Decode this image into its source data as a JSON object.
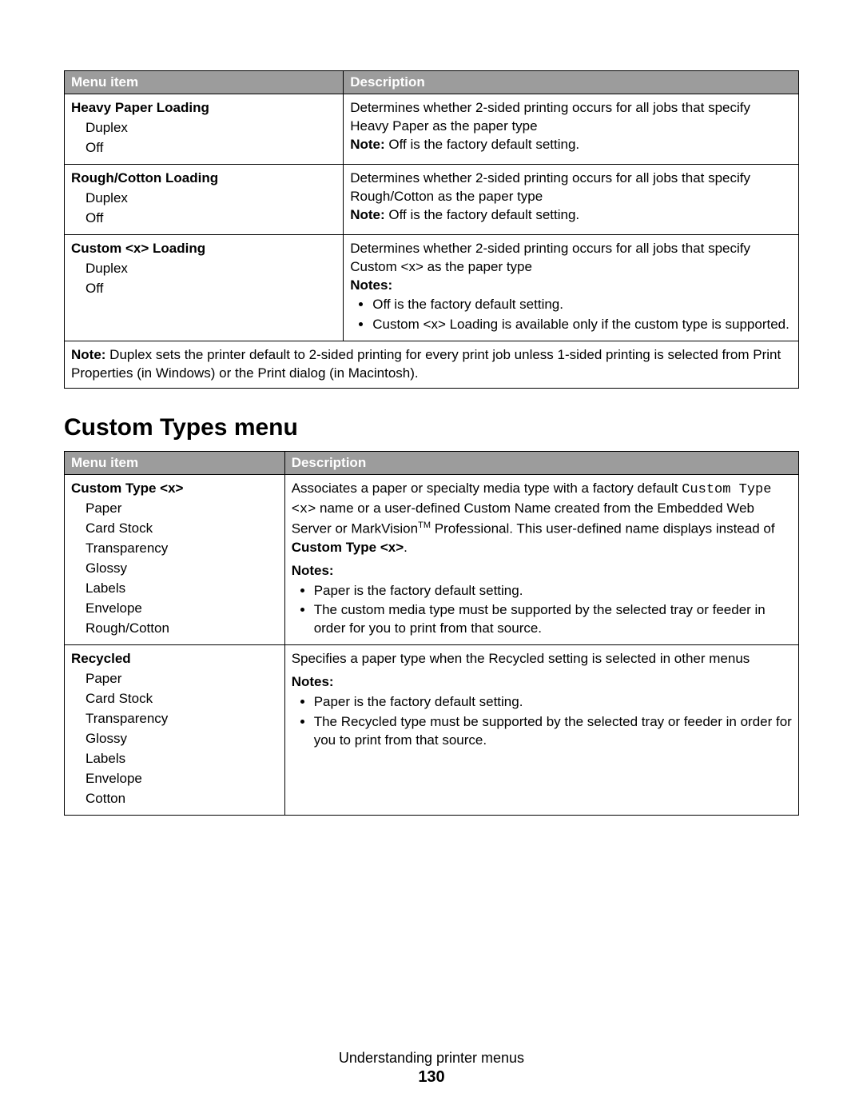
{
  "colors": {
    "header_bg": "#9c9c9c",
    "header_text": "#ffffff",
    "border": "#000000",
    "page_bg": "#ffffff"
  },
  "table1": {
    "col1_width_percent": 38,
    "headers": {
      "col1": "Menu item",
      "col2": "Description"
    },
    "rows": [
      {
        "title": "Heavy Paper Loading",
        "options": [
          "Duplex",
          "Off"
        ],
        "desc_main": "Determines whether 2-sided printing occurs for all jobs that specify Heavy Paper as the paper type",
        "note_label": "Note:",
        "note_text": " Off is the factory default setting."
      },
      {
        "title": "Rough/Cotton Loading",
        "options": [
          "Duplex",
          "Off"
        ],
        "desc_main": "Determines whether 2-sided printing occurs for all jobs that specify Rough/Cotton as the paper type",
        "note_label": "Note:",
        "note_text": " Off is the factory default setting."
      },
      {
        "title": "Custom <x> Loading",
        "options": [
          "Duplex",
          "Off"
        ],
        "desc_main": "Determines whether 2-sided printing occurs for all jobs that specify Custom <x> as the paper type",
        "notes_label": "Notes:",
        "bullets": [
          "Off is the factory default setting.",
          "Custom <x> Loading is available only if the custom type is supported."
        ]
      }
    ],
    "footnote_label": "Note:",
    "footnote_text": " Duplex sets the printer default to 2-sided printing for every print job unless 1-sided printing is selected from Print Properties (in Windows) or the Print dialog (in Macintosh)."
  },
  "section_heading": "Custom Types menu",
  "table2": {
    "col1_width_percent": 30,
    "headers": {
      "col1": "Menu item",
      "col2": "Description"
    },
    "rows": [
      {
        "title": "Custom Type <x>",
        "options": [
          "Paper",
          "Card Stock",
          "Transparency",
          "Glossy",
          "Labels",
          "Envelope",
          "Rough/Cotton"
        ],
        "desc_parts": {
          "pre": "Associates a paper or specialty media type with a factory default ",
          "mono1": "Custom Type <x>",
          "mid1": " name or a user-defined Custom Name created from the Embedded Web Server or MarkVision",
          "tm": "TM",
          "mid2": " Professional. This user-defined name displays instead of ",
          "bold1": "Custom Type <x>",
          "post": "."
        },
        "notes_label": "Notes:",
        "bullets": [
          "Paper is the factory default setting.",
          "The custom media type must be supported by the selected tray or feeder in order for you to print from that source."
        ]
      },
      {
        "title": "Recycled",
        "options": [
          "Paper",
          "Card Stock",
          "Transparency",
          "Glossy",
          "Labels",
          "Envelope",
          "Cotton"
        ],
        "desc_main": "Specifies a paper type when the Recycled setting is selected in other menus",
        "notes_label": "Notes:",
        "bullets": [
          "Paper is the factory default setting.",
          "The Recycled type must be supported by the selected tray or feeder in order for you to print from that source."
        ]
      }
    ]
  },
  "footer": {
    "title": "Understanding printer menus",
    "page_number": "130"
  }
}
